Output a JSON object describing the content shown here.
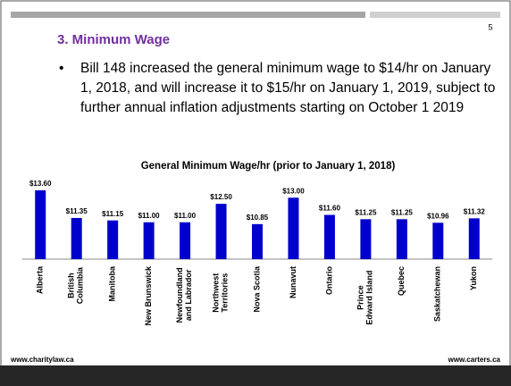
{
  "slide_number": "5",
  "heading": "3.  Minimum Wage",
  "bullet": "Bill 148 increased the general minimum wage to $14/hr on January 1, 2018, and will increase it to $15/hr on January 1, 2019, subject to further annual inflation adjustments starting on October 1 2019",
  "footer": {
    "left": "www.charitylaw.ca",
    "right": "www.carters.ca"
  },
  "chart_data": {
    "type": "bar",
    "title": "General Minimum Wage/hr (prior to January 1, 2018)",
    "categories": [
      "Alberta",
      "British Columbia",
      "Manitoba",
      "New Brunswick",
      "Newfoundland and Labrador",
      "Northwest Territories",
      "Nova Scotia",
      "Nunavut",
      "Ontario",
      "Prince Edward Island",
      "Quebec",
      "Saskatchewan",
      "Yukon"
    ],
    "values": [
      13.6,
      11.35,
      11.15,
      11.0,
      11.0,
      12.5,
      10.85,
      13.0,
      11.6,
      11.25,
      11.25,
      10.96,
      11.32
    ],
    "value_labels": [
      "$13.60",
      "$11.35",
      "$11.15",
      "$11.00",
      "$11.00",
      "$12.50",
      "$10.85",
      "$13.00",
      "$11.60",
      "$11.25",
      "$11.25",
      "$10.96",
      "$11.32"
    ],
    "color": "#0000cc",
    "ylim": [
      8,
      14
    ]
  }
}
